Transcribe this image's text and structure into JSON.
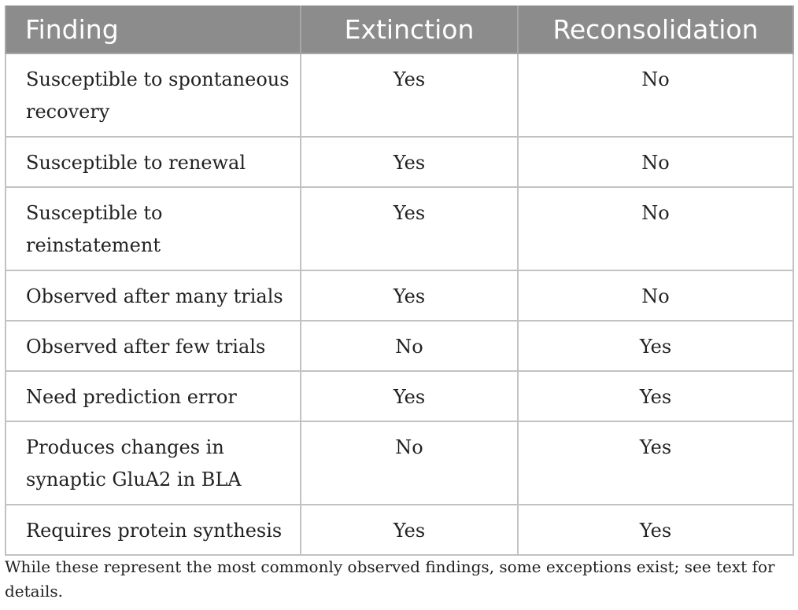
{
  "table": {
    "headers": {
      "finding": "Finding",
      "extinction": "Extinction",
      "reconsolidation": "Reconsolidation"
    },
    "rows": [
      {
        "finding": "Susceptible to spontaneous recovery",
        "extinction": "Yes",
        "reconsolidation": "No"
      },
      {
        "finding": "Susceptible to renewal",
        "extinction": "Yes",
        "reconsolidation": "No"
      },
      {
        "finding": "Susceptible to reinstatement",
        "extinction": "Yes",
        "reconsolidation": "No"
      },
      {
        "finding": "Observed after many trials",
        "extinction": "Yes",
        "reconsolidation": "No"
      },
      {
        "finding": "Observed after few trials",
        "extinction": "No",
        "reconsolidation": "Yes"
      },
      {
        "finding": "Need prediction error",
        "extinction": "Yes",
        "reconsolidation": "Yes"
      },
      {
        "finding": "Produces changes in synaptic GluA2 in BLA",
        "extinction": "No",
        "reconsolidation": "Yes"
      },
      {
        "finding": "Requires protein synthesis",
        "extinction": "Yes",
        "reconsolidation": "Yes"
      }
    ]
  },
  "footnote": "While these represent the most commonly observed findings, some exceptions exist; see text for details.",
  "colors": {
    "header_background": "#8c8c8c",
    "header_text": "#ffffff",
    "grid": "#c2c2c2",
    "body_text": "#222222"
  }
}
